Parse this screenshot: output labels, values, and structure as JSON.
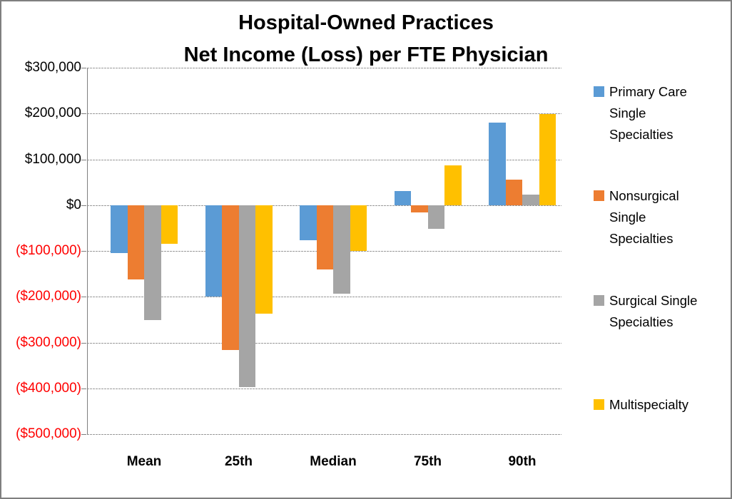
{
  "window": {
    "background": "#ffffff",
    "border_color": "#7f7f7f"
  },
  "title": {
    "line1": "Hospital-Owned Practices",
    "line2": "Net Income (Loss) per FTE Physician"
  },
  "y_axis": {
    "tick_labels": [
      "$300,000",
      "$200,000",
      "$100,000",
      "$0",
      "($100,000)",
      "($200,000)",
      "($300,000)",
      "($400,000)",
      "($500,000)"
    ],
    "tick_values": [
      300000,
      200000,
      100000,
      0,
      -100000,
      -200000,
      -300000,
      -400000,
      -500000
    ],
    "positive_label_color": "#000000",
    "negative_label_color": "#ff0000"
  },
  "x_axis": {
    "categories": [
      "Mean",
      "25th",
      "Median",
      "75th",
      "90th"
    ]
  },
  "legend": {
    "position": "right",
    "entries": [
      {
        "label": "Primary Care Single Specialties",
        "color": "#5B9BD5",
        "icon": "legend-swatch-blue"
      },
      {
        "label": "Nonsurgical Single Specialties",
        "color": "#ED7D31",
        "icon": "legend-swatch-orange"
      },
      {
        "label": "Surgical Single Specialties",
        "color": "#A5A5A5",
        "icon": "legend-swatch-gray"
      },
      {
        "label": "Multispecialty",
        "color": "#FFC000",
        "icon": "legend-swatch-yellow"
      }
    ]
  },
  "chart_data": {
    "type": "bar",
    "title": "Hospital-Owned Practices Net Income (Loss) per FTE Physician",
    "categories": [
      "Mean",
      "25th",
      "Median",
      "75th",
      "90th"
    ],
    "series": [
      {
        "name": "Primary Care Single Specialties",
        "color": "#5B9BD5",
        "values": [
          -105000,
          -200000,
          -77000,
          30000,
          180000
        ]
      },
      {
        "name": "Nonsurgical Single Specialties",
        "color": "#ED7D31",
        "values": [
          -163000,
          -317000,
          -140000,
          -16000,
          56000
        ]
      },
      {
        "name": "Surgical Single Specialties",
        "color": "#A5A5A5",
        "values": [
          -251000,
          -398000,
          -194000,
          -51000,
          23000
        ]
      },
      {
        "name": "Multispecialty",
        "color": "#FFC000",
        "values": [
          -85000,
          -237000,
          -100000,
          86000,
          199000
        ]
      }
    ],
    "xlabel": "",
    "ylabel": "",
    "ylim": [
      -500000,
      300000
    ],
    "gridline_step": 100000,
    "grid": true,
    "negative_tick_color": "#ff0000",
    "legend_position": "right"
  }
}
